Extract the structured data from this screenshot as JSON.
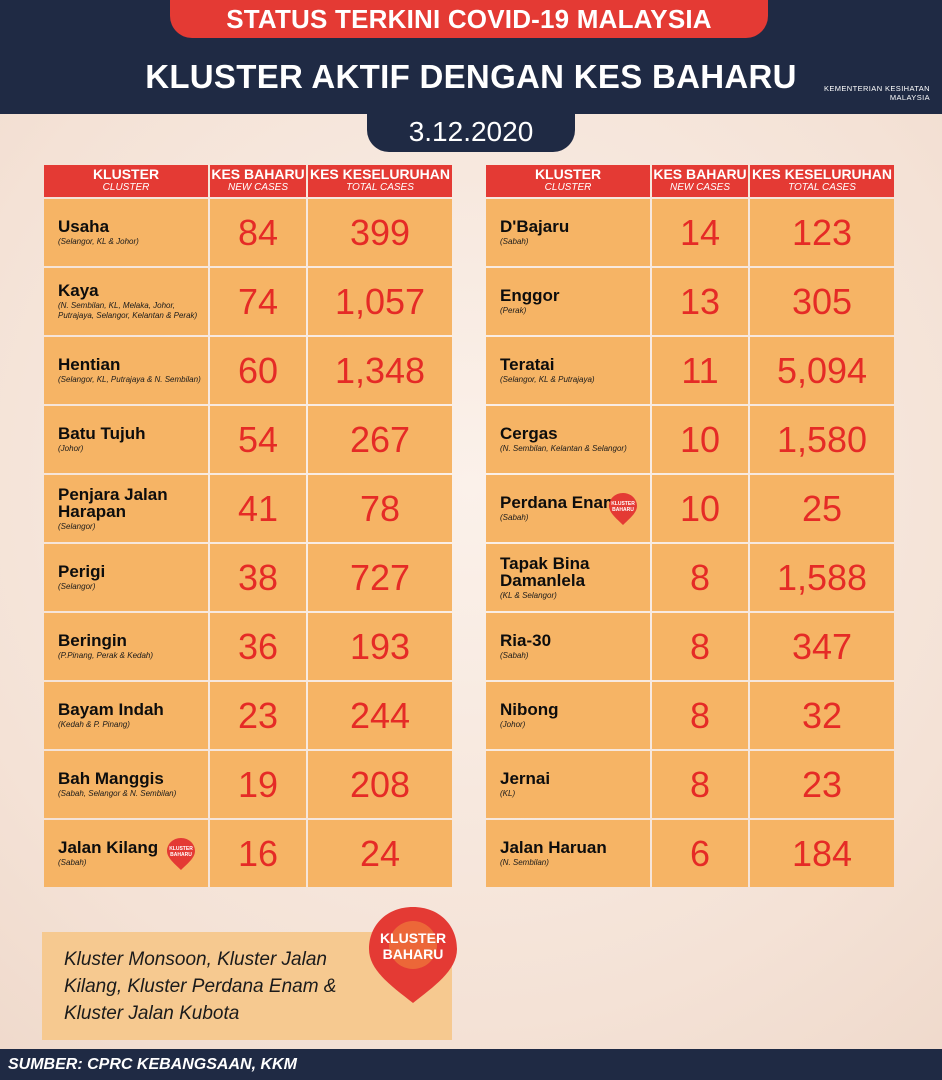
{
  "header": {
    "status_title": "STATUS TERKINI COVID-19 MALAYSIA",
    "main_title": "KLUSTER AKTIF DENGAN KES BAHARU",
    "ministry_line1": "KEMENTERIAN KESIHATAN",
    "ministry_line2": "MALAYSIA",
    "date": "3.12.2020"
  },
  "columns": {
    "cluster": "KLUSTER",
    "cluster_sub": "CLUSTER",
    "new": "KES BAHARU",
    "new_sub": "NEW CASES",
    "total": "KES KESELURUHAN",
    "total_sub": "TOTAL CASES"
  },
  "badge": {
    "line1": "KLUSTER",
    "line2": "BAHARU"
  },
  "left_rows": [
    {
      "name": "Usaha",
      "location": "(Selangor, KL & Johor)",
      "new": "84",
      "total": "399"
    },
    {
      "name": "Kaya",
      "location": "(N. Sembilan, KL, Melaka, Johor, Putrajaya, Selangor, Kelantan & Perak)",
      "new": "74",
      "total": "1,057"
    },
    {
      "name": "Hentian",
      "location": "(Selangor, KL, Putrajaya & N. Sembilan)",
      "new": "60",
      "total": "1,348"
    },
    {
      "name": "Batu Tujuh",
      "location": "(Johor)",
      "new": "54",
      "total": "267"
    },
    {
      "name": "Penjara Jalan Harapan",
      "location": "(Selangor)",
      "new": "41",
      "total": "78"
    },
    {
      "name": "Perigi",
      "location": "(Selangor)",
      "new": "38",
      "total": "727"
    },
    {
      "name": "Beringin",
      "location": "(P.Pinang, Perak & Kedah)",
      "new": "36",
      "total": "193"
    },
    {
      "name": "Bayam Indah",
      "location": "(Kedah & P. Pinang)",
      "new": "23",
      "total": "244"
    },
    {
      "name": "Bah Manggis",
      "location": "(Sabah, Selangor & N. Sembilan)",
      "new": "19",
      "total": "208"
    },
    {
      "name": "Jalan Kilang",
      "location": "(Sabah)",
      "new": "16",
      "total": "24"
    }
  ],
  "right_rows": [
    {
      "name": "D'Bajaru",
      "location": "(Sabah)",
      "new": "14",
      "total": "123"
    },
    {
      "name": "Enggor",
      "location": "(Perak)",
      "new": "13",
      "total": "305"
    },
    {
      "name": "Teratai",
      "location": "(Selangor, KL & Putrajaya)",
      "new": "11",
      "total": "5,094"
    },
    {
      "name": "Cergas",
      "location": "(N. Sembilan, Kelantan & Selangor)",
      "new": "10",
      "total": "1,580"
    },
    {
      "name": "Perdana Enam",
      "location": "(Sabah)",
      "new": "10",
      "total": "25"
    },
    {
      "name": "Tapak Bina Damanlela",
      "location": "(KL & Selangor)",
      "new": "8",
      "total": "1,588"
    },
    {
      "name": "Ria-30",
      "location": "(Sabah)",
      "new": "8",
      "total": "347"
    },
    {
      "name": "Nibong",
      "location": "(Johor)",
      "new": "8",
      "total": "32"
    },
    {
      "name": "Jernai",
      "location": "(KL)",
      "new": "8",
      "total": "23"
    },
    {
      "name": "Jalan Haruan",
      "location": "(N. Sembilan)",
      "new": "6",
      "total": "184"
    }
  ],
  "note": {
    "text": "Kluster Monsoon, Kluster Jalan Kilang, Kluster Perdana Enam & Kluster Jalan Kubota"
  },
  "footer": {
    "source": "SUMBER: CPRC KEBANGSAAN, KKM"
  },
  "colors": {
    "navy": "#1f2a44",
    "red": "#e43a34",
    "cell": "#f6b465"
  },
  "icons": {
    "badge": "map-pin-icon"
  }
}
